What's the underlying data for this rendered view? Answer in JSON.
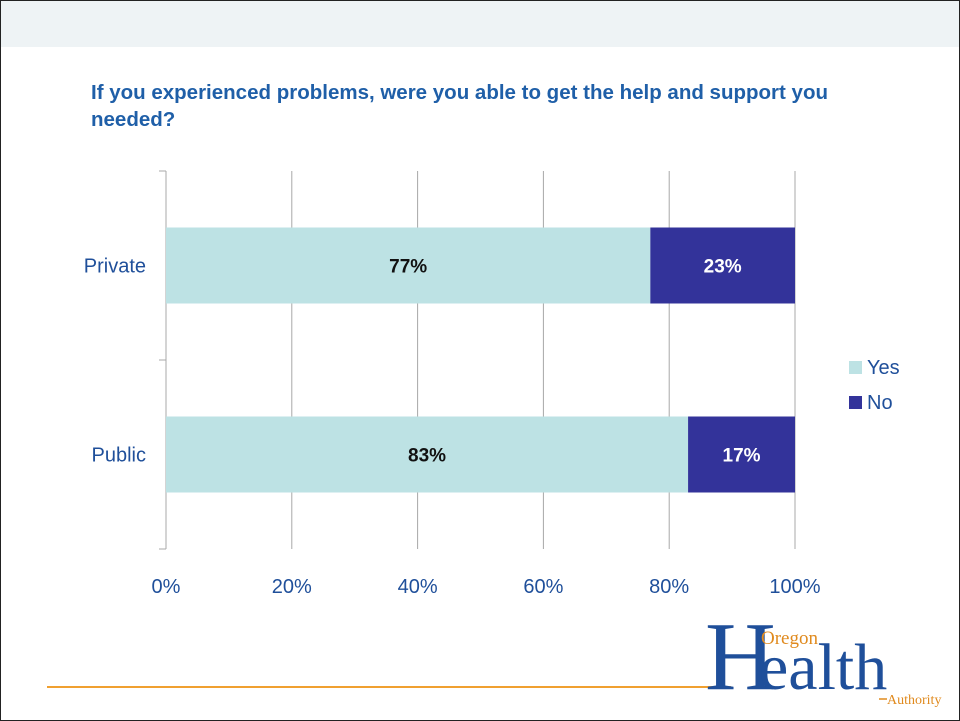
{
  "colors": {
    "yes": "#bde2e4",
    "no": "#33339a",
    "title": "#1f5fa8",
    "axis_text": "#1f4f9a",
    "grid": "#a8a8a8",
    "accent_line": "#f0a030",
    "logo_blue": "#1f4f9a",
    "logo_orange": "#e08a1e"
  },
  "slide": {
    "title": "If you experienced problems, were you able to get the help and support you needed?"
  },
  "chart_data": {
    "type": "bar",
    "orientation": "horizontal",
    "stacked": true,
    "title": "If you experienced problems, were you able to get the help and support you needed?",
    "categories": [
      "Private",
      "Public"
    ],
    "series": [
      {
        "name": "Yes",
        "values": [
          77,
          83
        ],
        "labels": [
          "77%",
          "83%"
        ]
      },
      {
        "name": "No",
        "values": [
          23,
          17
        ],
        "labels": [
          "23%",
          "17%"
        ]
      }
    ],
    "xlim": [
      0,
      100
    ],
    "xticks": [
      "0%",
      "20%",
      "40%",
      "60%",
      "80%",
      "100%"
    ],
    "grid": true,
    "legend": "right"
  },
  "logo": {
    "word_oregon": "Oregon",
    "word_health": "ealth",
    "letter_h": "H",
    "word_authority": "Authority"
  }
}
